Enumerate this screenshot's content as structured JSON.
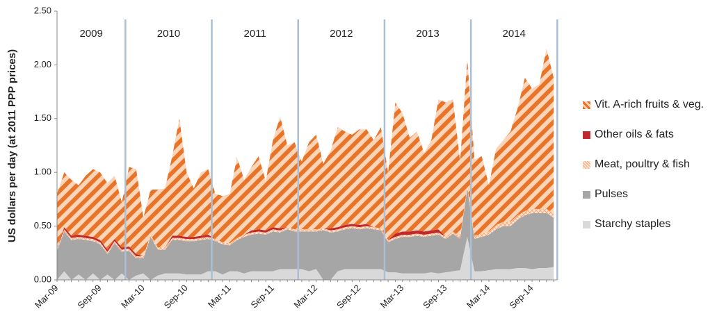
{
  "chart_data": {
    "type": "stacked_area",
    "y_label": "US dollars per day (at 2011 PPP prices)",
    "categories": [
      "Mar-09",
      null,
      null,
      null,
      null,
      null,
      "Sep-09",
      null,
      null,
      null,
      null,
      null,
      "Mar-10",
      null,
      null,
      null,
      null,
      null,
      "Sep-10",
      null,
      null,
      null,
      null,
      null,
      "Mar-11",
      null,
      null,
      null,
      null,
      null,
      "Sep-11",
      null,
      null,
      null,
      null,
      null,
      "Mar-12",
      null,
      null,
      null,
      null,
      null,
      "Sep-12",
      null,
      null,
      null,
      null,
      null,
      "Mar-13",
      null,
      null,
      null,
      null,
      null,
      "Sep-13",
      null,
      null,
      null,
      null,
      null,
      "Mar-14",
      null,
      null,
      null,
      null,
      null,
      "Sep-14",
      null,
      null,
      null
    ],
    "annotations": [
      "2009",
      "2010",
      "2011",
      "2012",
      "2013",
      "2014"
    ],
    "ylim": [
      0,
      2.5
    ],
    "yticks": [
      {
        "value": 0,
        "label": "0.00"
      },
      {
        "value": 0.5,
        "label": "0.50"
      },
      {
        "value": 1,
        "label": "1.00"
      },
      {
        "value": 1.5,
        "label": "1.50"
      },
      {
        "value": 2,
        "label": "2.00"
      },
      {
        "value": 2.5,
        "label": "2.50"
      }
    ],
    "series": [
      {
        "name": "Vit. A-rich fruits & veg.",
        "color": "#e8742a",
        "pattern": "diagonal",
        "values": [
          0.51,
          0.51,
          0.52,
          0.46,
          0.56,
          0.63,
          0.63,
          0.62,
          0.59,
          0.42,
          0.74,
          0.79,
          0.36,
          0.42,
          0.54,
          0.55,
          0.74,
          1.09,
          0.6,
          0.45,
          0.59,
          0.61,
          0.42,
          0.43,
          0.46,
          0.75,
          0.51,
          0.59,
          0.68,
          0.46,
          0.81,
          1.04,
          0.76,
          0.81,
          0.63,
          0.81,
          0.88,
          0.6,
          0.72,
          0.93,
          0.87,
          0.83,
          0.89,
          0.88,
          0.81,
          0.94,
          0.63,
          1.22,
          1.1,
          0.87,
          0.92,
          0.73,
          0.84,
          1.21,
          1.25,
          1.23,
          0.7,
          1.18,
          0.71,
          0.72,
          0.43,
          0.71,
          0.76,
          0.84,
          1.0,
          1.24,
          1.12,
          1.16,
          1.49,
          1.26
        ]
      },
      {
        "name": "Other oils & fats",
        "color": "#c0282d",
        "values": [
          0,
          0.02,
          0.02,
          0.02,
          0.02,
          0.02,
          0.02,
          0.02,
          0.02,
          0.02,
          0.02,
          0.02,
          0,
          0,
          0,
          0,
          0.02,
          0.02,
          0.02,
          0.02,
          0.02,
          0.02,
          0,
          0,
          0,
          0,
          0,
          0.02,
          0.02,
          0.02,
          0.02,
          0.02,
          0,
          0,
          0,
          0,
          0,
          0,
          0.02,
          0.02,
          0.02,
          0.02,
          0.02,
          0.02,
          0,
          0,
          0,
          0.03,
          0.03,
          0.03,
          0.03,
          0.03,
          0.03,
          0.03,
          0,
          0,
          0,
          0,
          0,
          0,
          0,
          0,
          0,
          0,
          0,
          0,
          0,
          0,
          0,
          0
        ]
      },
      {
        "name": "Meat, poultry & fish",
        "color": "#f4a97a",
        "pattern": "hatch",
        "values": [
          0.02,
          0.02,
          0.02,
          0.02,
          0.02,
          0.02,
          0.02,
          0.02,
          0.02,
          0.02,
          0.02,
          0.02,
          0.02,
          0.02,
          0.02,
          0.02,
          0.02,
          0.02,
          0.02,
          0.02,
          0.02,
          0.02,
          0.02,
          0.02,
          0.02,
          0.02,
          0.02,
          0.02,
          0.02,
          0.02,
          0.02,
          0.02,
          0.02,
          0.02,
          0.02,
          0.02,
          0.02,
          0.02,
          0.02,
          0.02,
          0.02,
          0.02,
          0.02,
          0.02,
          0.02,
          0.02,
          0.02,
          0.02,
          0.02,
          0.02,
          0.02,
          0.02,
          0.02,
          0.02,
          0.02,
          0.02,
          0.02,
          0.02,
          0.03,
          0.03,
          0.03,
          0.04,
          0.04,
          0.04,
          0.04,
          0.04,
          0.04,
          0.04,
          0.04,
          0.04
        ]
      },
      {
        "name": "Pulses",
        "color": "#a6a6a6",
        "values": [
          0.27,
          0.37,
          0.37,
          0.33,
          0.37,
          0.3,
          0.33,
          0.19,
          0.34,
          0.2,
          0.27,
          0.16,
          0.14,
          0.4,
          0.24,
          0.22,
          0.31,
          0.31,
          0.31,
          0.31,
          0.32,
          0.3,
          0.28,
          0.28,
          0.24,
          0.29,
          0.34,
          0.34,
          0.35,
          0.34,
          0.37,
          0.34,
          0.37,
          0.35,
          0.35,
          0.37,
          0.35,
          0.46,
          0.44,
          0.37,
          0.37,
          0.38,
          0.37,
          0.38,
          0.37,
          0.36,
          0.28,
          0.31,
          0.34,
          0.34,
          0.35,
          0.34,
          0.34,
          0.36,
          0.31,
          0.35,
          0.29,
          0.45,
          0.3,
          0.32,
          0.33,
          0.37,
          0.4,
          0.4,
          0.45,
          0.49,
          0.52,
          0.51,
          0.51,
          0.46
        ]
      },
      {
        "name": "Starchy staples",
        "color": "#d9d9d9",
        "values": [
          0,
          0.08,
          0,
          0.05,
          0,
          0.06,
          0,
          0.05,
          0,
          0.06,
          0,
          0.04,
          0.06,
          0,
          0.04,
          0.06,
          0.06,
          0.06,
          0.05,
          0.05,
          0.05,
          0.08,
          0.08,
          0.05,
          0.08,
          0.08,
          0.06,
          0.08,
          0.08,
          0.08,
          0.08,
          0.1,
          0.1,
          0.1,
          0.1,
          0.08,
          0.1,
          0,
          0,
          0.08,
          0.1,
          0.1,
          0.1,
          0.1,
          0.1,
          0.1,
          0.07,
          0.07,
          0.06,
          0.06,
          0.06,
          0.06,
          0.07,
          0.06,
          0.07,
          0.08,
          0.09,
          0.4,
          0.08,
          0.08,
          0.09,
          0.1,
          0.1,
          0.1,
          0.11,
          0.11,
          0.1,
          0.11,
          0.11,
          0.12
        ]
      }
    ]
  }
}
